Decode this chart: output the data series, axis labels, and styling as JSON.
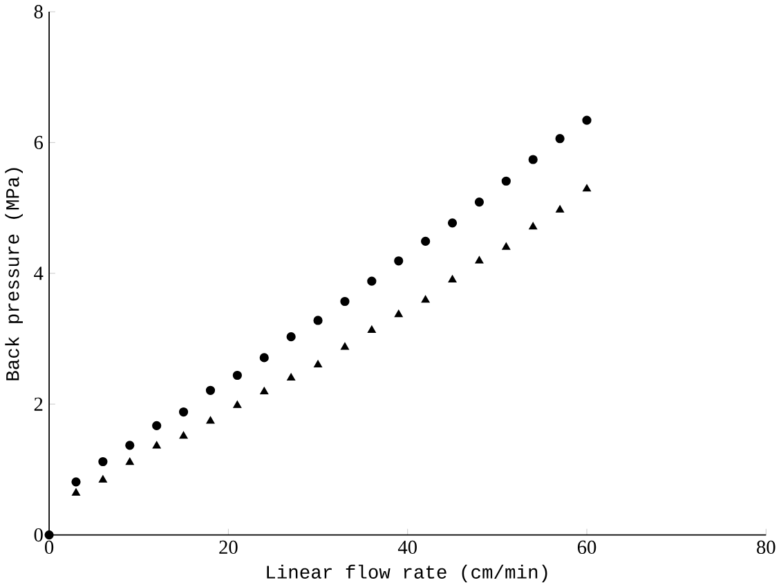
{
  "chart_data": {
    "type": "scatter",
    "xlabel": "Linear flow rate (cm/min)",
    "ylabel": "Back pressure (MPa)",
    "xlim": [
      0,
      80
    ],
    "ylim": [
      0,
      8
    ],
    "xticks": [
      0,
      20,
      40,
      60,
      80
    ],
    "yticks": [
      0,
      2,
      4,
      6,
      8
    ],
    "series": [
      {
        "color": "#000000",
        "marker": "circle",
        "x": [
          0,
          3,
          6,
          9,
          12,
          15,
          18,
          21,
          24,
          27,
          30,
          33,
          36,
          39,
          42,
          45,
          48,
          51,
          54,
          57,
          60
        ],
        "values": [
          0,
          0.81,
          1.12,
          1.37,
          1.67,
          1.88,
          2.21,
          2.44,
          2.71,
          3.03,
          3.28,
          3.57,
          3.88,
          4.19,
          4.49,
          4.77,
          5.09,
          5.41,
          5.74,
          6.06,
          6.34
        ]
      },
      {
        "color": "#000000",
        "marker": "triangle",
        "x": [
          3,
          6,
          9,
          12,
          15,
          18,
          21,
          24,
          27,
          30,
          33,
          36,
          39,
          42,
          45,
          48,
          51,
          54,
          57,
          60
        ],
        "values": [
          0.64,
          0.84,
          1.11,
          1.36,
          1.51,
          1.74,
          1.98,
          2.19,
          2.4,
          2.6,
          2.87,
          3.13,
          3.37,
          3.59,
          3.9,
          4.19,
          4.4,
          4.71,
          4.97,
          5.29
        ]
      }
    ]
  }
}
